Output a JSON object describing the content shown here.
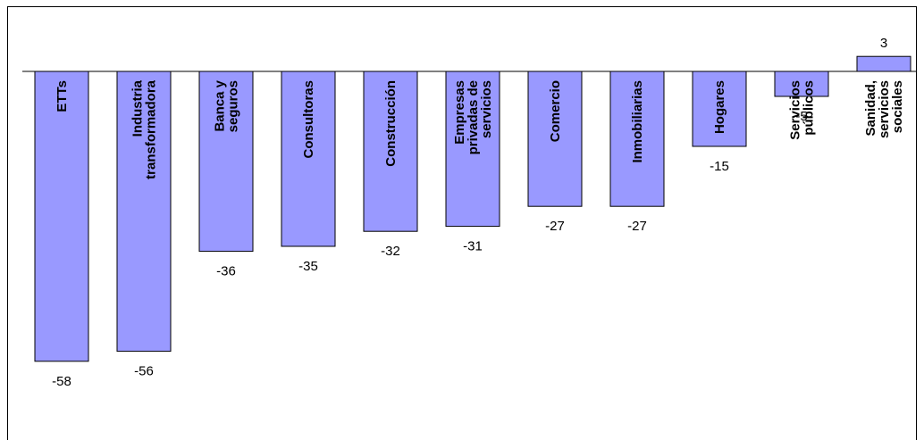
{
  "chart_data": {
    "type": "bar",
    "categories": [
      [
        "ETTs"
      ],
      [
        "Industria",
        "transformadora"
      ],
      [
        "Banca y",
        "seguros"
      ],
      [
        "Consultoras"
      ],
      [
        "Construcción"
      ],
      [
        "Empresas",
        "privadas de",
        "servicios"
      ],
      [
        "Comercio"
      ],
      [
        "Inmobiliarias"
      ],
      [
        "Hogares"
      ],
      [
        "Servicios",
        "públicos"
      ],
      [
        "Sanidad,",
        "servicios",
        "sociales"
      ]
    ],
    "values": [
      -58,
      -56,
      -36,
      -35,
      -32,
      -31,
      -27,
      -27,
      -15,
      -5,
      3
    ],
    "value_labels": [
      "-58",
      "-56",
      "-36",
      "-35",
      "-32",
      "-31",
      "-27",
      "-27",
      "-15",
      "-5",
      "3"
    ],
    "title": "",
    "xlabel": "",
    "ylabel": "",
    "grid": false,
    "legend": "none",
    "bar_color": "#9999ff",
    "bar_edge_color": "#000000"
  }
}
